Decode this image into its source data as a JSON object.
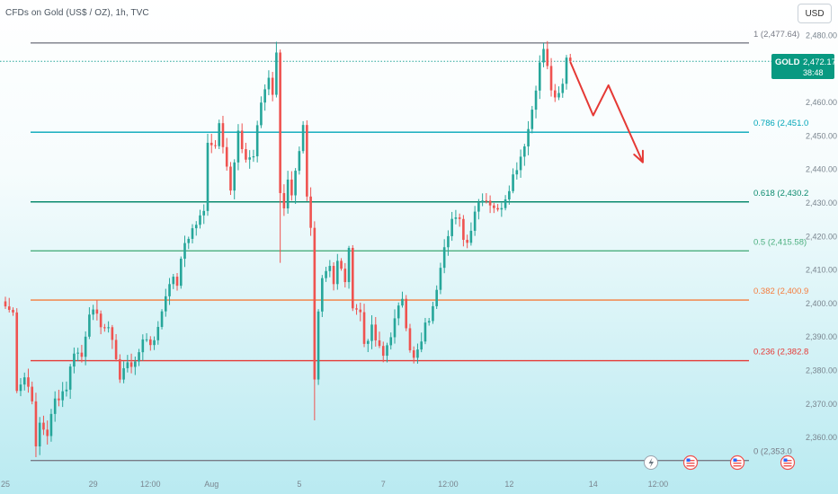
{
  "header": {
    "symbol_line": "CFDs on Gold (US$ / OZ), 1h, TVC",
    "currency_button": "USD"
  },
  "price_tag": {
    "symbol": "GOLD",
    "price": "2,472.17",
    "countdown": "38:48"
  },
  "chart_data": {
    "type": "candlestick",
    "title": "CFDs on Gold (US$ / OZ), 1h, TVC",
    "y_axis": {
      "ticks": [
        2360,
        2370,
        2380,
        2390,
        2400,
        2410,
        2420,
        2430,
        2440,
        2450,
        2460,
        2480
      ],
      "tick_labels": [
        "2,360.00",
        "2,370.00",
        "2,380.00",
        "2,390.00",
        "2,400.00",
        "2,410.00",
        "2,420.00",
        "2,430.00",
        "2,440.00",
        "2,450.00",
        "2,460.00",
        "2,480.00"
      ],
      "range": [
        2351,
        2483
      ]
    },
    "x_axis": {
      "tick_labels": [
        {
          "label": "25",
          "index": 0
        },
        {
          "label": "29",
          "index": 23
        },
        {
          "label": "12:00",
          "index": 38
        },
        {
          "label": "Aug",
          "index": 54
        },
        {
          "label": "5",
          "index": 77
        },
        {
          "label": "7",
          "index": 99
        },
        {
          "label": "12:00",
          "index": 116
        },
        {
          "label": "12",
          "index": 132
        },
        {
          "label": "14",
          "index": 154
        },
        {
          "label": "12:00",
          "index": 171
        }
      ],
      "count": 175
    },
    "colors": {
      "up": "#26a69a",
      "down": "#ef5350",
      "price_line": "#26a69a",
      "projection": "#e53935"
    },
    "fibonacci": [
      {
        "ratio": "1",
        "price": 2477.64,
        "label": "1 (2,477.64)",
        "color": "#787b86"
      },
      {
        "ratio": "0.786",
        "price": 2451.0,
        "label": "0.786 (2,451.0",
        "color": "#00a6b8"
      },
      {
        "ratio": "0.618",
        "price": 2430.2,
        "label": "0.618 (2,430.2",
        "color": "#0b8a6e"
      },
      {
        "ratio": "0.5",
        "price": 2415.58,
        "label": "0.5 (2,415.58)",
        "color": "#4caf7f"
      },
      {
        "ratio": "0.382",
        "price": 2400.9,
        "label": "0.382 (2,400.9",
        "color": "#f57c3c"
      },
      {
        "ratio": "0.236",
        "price": 2382.8,
        "label": "0.236 (2,382.8",
        "color": "#e53935"
      },
      {
        "ratio": "0",
        "price": 2353.0,
        "label": "0 (2,353.0",
        "color": "#787b86"
      }
    ],
    "current_price": 2472.17,
    "projection_path": [
      {
        "index": 148,
        "price": 2472
      },
      {
        "index": 154,
        "price": 2456
      },
      {
        "index": 158,
        "price": 2465
      },
      {
        "index": 167,
        "price": 2442
      }
    ],
    "anchors": [
      {
        "index": 0,
        "price": 2399
      },
      {
        "index": 2,
        "price": 2397
      },
      {
        "index": 3,
        "price": 2375
      },
      {
        "index": 5,
        "price": 2378
      },
      {
        "index": 7,
        "price": 2372
      },
      {
        "index": 8,
        "price": 2356
      },
      {
        "index": 9,
        "price": 2364
      },
      {
        "index": 11,
        "price": 2361
      },
      {
        "index": 13,
        "price": 2371
      },
      {
        "index": 16,
        "price": 2375
      },
      {
        "index": 18,
        "price": 2386
      },
      {
        "index": 20,
        "price": 2384
      },
      {
        "index": 22,
        "price": 2398
      },
      {
        "index": 25,
        "price": 2394
      },
      {
        "index": 28,
        "price": 2390
      },
      {
        "index": 30,
        "price": 2377
      },
      {
        "index": 32,
        "price": 2383
      },
      {
        "index": 34,
        "price": 2381
      },
      {
        "index": 36,
        "price": 2390
      },
      {
        "index": 38,
        "price": 2388
      },
      {
        "index": 40,
        "price": 2392
      },
      {
        "index": 41,
        "price": 2398
      },
      {
        "index": 43,
        "price": 2407
      },
      {
        "index": 45,
        "price": 2406
      },
      {
        "index": 47,
        "price": 2418
      },
      {
        "index": 49,
        "price": 2422
      },
      {
        "index": 52,
        "price": 2427
      },
      {
        "index": 53,
        "price": 2449
      },
      {
        "index": 55,
        "price": 2447
      },
      {
        "index": 56,
        "price": 2455
      },
      {
        "index": 58,
        "price": 2441
      },
      {
        "index": 59,
        "price": 2433
      },
      {
        "index": 61,
        "price": 2450
      },
      {
        "index": 63,
        "price": 2443
      },
      {
        "index": 65,
        "price": 2444
      },
      {
        "index": 67,
        "price": 2460
      },
      {
        "index": 69,
        "price": 2468
      },
      {
        "index": 70,
        "price": 2463
      },
      {
        "index": 71,
        "price": 2474
      },
      {
        "index": 72,
        "price": 2434
      },
      {
        "index": 73,
        "price": 2429
      },
      {
        "index": 74,
        "price": 2436
      },
      {
        "index": 75,
        "price": 2431
      },
      {
        "index": 76,
        "price": 2438
      },
      {
        "index": 77,
        "price": 2444
      },
      {
        "index": 78,
        "price": 2452
      },
      {
        "index": 79,
        "price": 2431
      },
      {
        "index": 80,
        "price": 2422
      },
      {
        "index": 81,
        "price": 2377
      },
      {
        "index": 82,
        "price": 2399
      },
      {
        "index": 83,
        "price": 2408
      },
      {
        "index": 85,
        "price": 2412
      },
      {
        "index": 86,
        "price": 2406
      },
      {
        "index": 87,
        "price": 2412
      },
      {
        "index": 89,
        "price": 2407
      },
      {
        "index": 90,
        "price": 2415
      },
      {
        "index": 91,
        "price": 2400
      },
      {
        "index": 93,
        "price": 2397
      },
      {
        "index": 94,
        "price": 2388
      },
      {
        "index": 96,
        "price": 2392
      },
      {
        "index": 98,
        "price": 2386
      },
      {
        "index": 99,
        "price": 2384
      },
      {
        "index": 101,
        "price": 2391
      },
      {
        "index": 103,
        "price": 2398
      },
      {
        "index": 104,
        "price": 2402
      },
      {
        "index": 105,
        "price": 2394
      },
      {
        "index": 106,
        "price": 2387
      },
      {
        "index": 107,
        "price": 2383
      },
      {
        "index": 109,
        "price": 2388
      },
      {
        "index": 110,
        "price": 2393
      },
      {
        "index": 112,
        "price": 2398
      },
      {
        "index": 114,
        "price": 2412
      },
      {
        "index": 115,
        "price": 2418
      },
      {
        "index": 117,
        "price": 2425
      },
      {
        "index": 119,
        "price": 2424
      },
      {
        "index": 120,
        "price": 2420
      },
      {
        "index": 121,
        "price": 2418
      },
      {
        "index": 123,
        "price": 2428
      },
      {
        "index": 125,
        "price": 2432
      },
      {
        "index": 126,
        "price": 2431
      },
      {
        "index": 128,
        "price": 2429
      },
      {
        "index": 129,
        "price": 2427
      },
      {
        "index": 131,
        "price": 2432
      },
      {
        "index": 133,
        "price": 2438
      },
      {
        "index": 135,
        "price": 2444
      },
      {
        "index": 137,
        "price": 2452
      },
      {
        "index": 138,
        "price": 2458
      },
      {
        "index": 139,
        "price": 2465
      },
      {
        "index": 140,
        "price": 2471
      },
      {
        "index": 141,
        "price": 2476
      },
      {
        "index": 142,
        "price": 2470
      },
      {
        "index": 143,
        "price": 2464
      },
      {
        "index": 144,
        "price": 2460
      },
      {
        "index": 145,
        "price": 2462
      },
      {
        "index": 146,
        "price": 2465
      },
      {
        "index": 147,
        "price": 2474
      },
      {
        "index": 148,
        "price": 2472.17
      }
    ],
    "spikes": [
      {
        "index": 8,
        "low": 2354
      },
      {
        "index": 71,
        "high": 2478
      },
      {
        "index": 72,
        "low": 2412
      },
      {
        "index": 81,
        "low": 2365
      },
      {
        "index": 141,
        "high": 2477.64
      }
    ]
  }
}
